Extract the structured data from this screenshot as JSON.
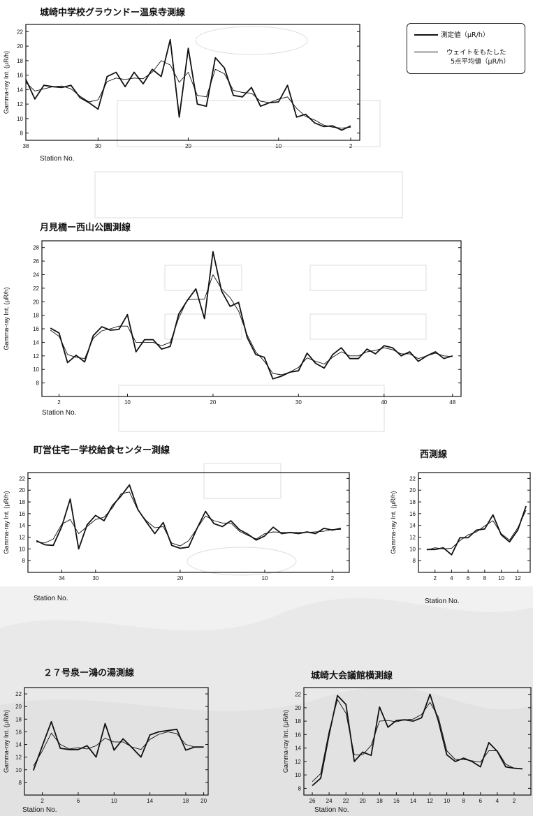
{
  "legend": {
    "measured": "測定値（μR/h）",
    "avg_line1": "ウェイトをもたした",
    "avg_line2": "5点平均値（μR/h）"
  },
  "chart_data": [
    {
      "type": "line",
      "title": "城崎中学校グラウンドー温泉寺測線",
      "ylabel": "Gamma-ray Int. (μR/h)",
      "xlabel": "Station No.",
      "x_reversed": true,
      "xlim": [
        38,
        1
      ],
      "ylim": [
        7,
        23
      ],
      "yticks": [
        8,
        10,
        12,
        14,
        16,
        18,
        20,
        22
      ],
      "xticks": [
        38,
        30,
        20,
        10,
        2
      ],
      "x": [
        38,
        37,
        36,
        35,
        34,
        33,
        32,
        31,
        30,
        29,
        28,
        27,
        26,
        25,
        24,
        23,
        22,
        21,
        20,
        19,
        18,
        17,
        16,
        15,
        14,
        13,
        12,
        11,
        10,
        9,
        8,
        7,
        6,
        5,
        4,
        3,
        2
      ],
      "series": [
        {
          "role": "measured",
          "values": [
            15.4,
            12.7,
            14.6,
            14.4,
            14.3,
            14.6,
            12.9,
            12.2,
            11.3,
            15.8,
            16.4,
            14.4,
            16.4,
            14.8,
            16.8,
            15.8,
            20.9,
            10.2,
            19.7,
            12.0,
            11.7,
            18.4,
            17.0,
            13.2,
            13.0,
            14.3,
            11.7,
            12.2,
            12.3,
            14.6,
            10.2,
            10.6,
            9.4,
            8.9,
            9.0,
            8.4,
            9.0
          ]
        },
        {
          "role": "average",
          "values": [
            15.0,
            13.8,
            14.1,
            14.4,
            14.5,
            14.1,
            13.1,
            12.3,
            12.6,
            15.1,
            15.6,
            15.4,
            15.6,
            15.5,
            16.4,
            18.0,
            17.4,
            15.0,
            16.4,
            13.2,
            13.0,
            16.8,
            16.2,
            13.9,
            13.6,
            13.5,
            12.4,
            12.2,
            12.7,
            13.0,
            11.4,
            10.3,
            9.8,
            9.1,
            8.8,
            8.7,
            8.8
          ]
        }
      ]
    },
    {
      "type": "line",
      "title": "月見橋ー西山公園測線",
      "ylabel": "Gamma-ray Int. (μR/h)",
      "xlabel": "Station No.",
      "x_reversed": false,
      "xlim": [
        0,
        49
      ],
      "ylim": [
        6,
        29
      ],
      "yticks": [
        8,
        10,
        12,
        14,
        16,
        18,
        20,
        22,
        24,
        26,
        28
      ],
      "xticks": [
        2,
        10,
        20,
        30,
        40,
        48
      ],
      "x": [
        1,
        2,
        3,
        4,
        5,
        6,
        7,
        8,
        9,
        10,
        11,
        12,
        13,
        14,
        15,
        16,
        17,
        18,
        19,
        20,
        21,
        22,
        23,
        24,
        25,
        26,
        27,
        28,
        29,
        30,
        31,
        32,
        33,
        34,
        35,
        36,
        37,
        38,
        39,
        40,
        41,
        42,
        43,
        44,
        45,
        46,
        47,
        48
      ],
      "series": [
        {
          "role": "measured",
          "values": [
            16.1,
            15.4,
            11.0,
            12.1,
            11.1,
            15.0,
            16.3,
            15.8,
            15.9,
            18.1,
            12.6,
            14.4,
            14.4,
            13.0,
            13.4,
            18.2,
            20.2,
            21.9,
            17.5,
            27.4,
            21.6,
            19.3,
            19.9,
            14.7,
            12.2,
            11.8,
            8.6,
            9.0,
            9.6,
            9.8,
            12.4,
            10.9,
            10.2,
            12.2,
            13.2,
            11.6,
            11.6,
            13.0,
            12.3,
            13.5,
            13.2,
            12.0,
            12.6,
            11.2,
            12.0,
            12.6,
            11.6,
            12.0
          ]
        },
        {
          "role": "average",
          "values": [
            15.8,
            14.9,
            12.2,
            11.8,
            11.6,
            14.6,
            15.7,
            16.0,
            16.4,
            16.4,
            14.0,
            14.0,
            14.0,
            13.5,
            14.0,
            17.6,
            20.3,
            20.4,
            20.4,
            24.0,
            21.9,
            20.6,
            18.6,
            15.1,
            12.6,
            11.2,
            9.4,
            9.2,
            9.6,
            10.3,
            11.7,
            11.2,
            10.8,
            11.8,
            12.6,
            12.0,
            12.0,
            12.6,
            12.8,
            13.2,
            12.9,
            12.3,
            12.3,
            11.6,
            12.0,
            12.4,
            12.0,
            11.9
          ]
        }
      ]
    },
    {
      "type": "line",
      "title": "町営住宅ー学校給食センター測線",
      "ylabel": "Gamma-ray Int. (μR/h)",
      "xlabel": "Station No.",
      "x_reversed": true,
      "xlim": [
        38,
        0
      ],
      "ylim": [
        6,
        23
      ],
      "yticks": [
        8,
        10,
        12,
        14,
        16,
        18,
        20,
        22
      ],
      "xticks": [
        34,
        30,
        20,
        10,
        2
      ],
      "x": [
        37,
        36,
        35,
        34,
        33,
        32,
        31,
        30,
        29,
        28,
        27,
        26,
        25,
        24,
        23,
        22,
        21,
        20,
        19,
        18,
        17,
        16,
        15,
        14,
        13,
        12,
        11,
        10,
        9,
        8,
        7,
        6,
        5,
        4,
        3,
        2,
        1
      ],
      "series": [
        {
          "role": "measured",
          "values": [
            11.4,
            10.7,
            10.6,
            13.8,
            18.5,
            10.0,
            14.1,
            15.7,
            14.8,
            17.4,
            19.0,
            20.9,
            16.7,
            14.6,
            12.6,
            14.5,
            10.6,
            10.1,
            10.3,
            13.5,
            16.4,
            14.3,
            13.8,
            14.8,
            13.3,
            12.5,
            11.5,
            12.2,
            13.7,
            12.6,
            12.8,
            12.6,
            12.9,
            12.6,
            13.5,
            13.2,
            13.5
          ]
        },
        {
          "role": "average",
          "values": [
            11.2,
            11.0,
            11.7,
            14.2,
            15.0,
            12.6,
            13.8,
            15.0,
            15.4,
            17.0,
            19.4,
            19.7,
            16.6,
            14.8,
            13.6,
            13.8,
            11.0,
            10.5,
            11.4,
            13.5,
            15.6,
            14.8,
            14.4,
            14.4,
            13.0,
            12.3,
            11.7,
            12.6,
            12.9,
            12.8,
            12.8,
            12.8,
            12.8,
            12.9,
            13.0,
            13.3,
            13.3
          ]
        }
      ]
    },
    {
      "type": "line",
      "title": "西測線",
      "ylabel": "Gamma-ray Int. (μR/h)",
      "xlabel": "Station No.",
      "x_reversed": false,
      "xlim": [
        0,
        13.5
      ],
      "ylim": [
        6,
        23
      ],
      "yticks": [
        8,
        10,
        12,
        14,
        16,
        18,
        20,
        22
      ],
      "xticks": [
        2,
        4,
        6,
        8,
        10,
        12
      ],
      "x": [
        1,
        2,
        3,
        4,
        5,
        6,
        7,
        8,
        9,
        10,
        11,
        12,
        13
      ],
      "series": [
        {
          "role": "measured",
          "values": [
            9.9,
            9.9,
            10.2,
            9.0,
            11.9,
            11.9,
            13.2,
            13.4,
            15.8,
            12.4,
            11.2,
            13.2,
            17.3
          ]
        },
        {
          "role": "average",
          "values": [
            9.8,
            10.2,
            10.0,
            10.1,
            11.4,
            12.4,
            12.9,
            13.9,
            14.8,
            12.6,
            11.5,
            13.6,
            16.6
          ]
        }
      ]
    },
    {
      "type": "line",
      "title": "２７号泉ー鴻の湯測線",
      "ylabel": "Gamma-ray Int. (μR/h)",
      "xlabel": "Station No.",
      "x_reversed": false,
      "xlim": [
        0,
        20.5
      ],
      "ylim": [
        6,
        23
      ],
      "yticks": [
        8,
        10,
        12,
        14,
        16,
        18,
        20,
        22
      ],
      "xticks": [
        2,
        6,
        10,
        14,
        18,
        20
      ],
      "x": [
        1,
        2,
        3,
        4,
        5,
        6,
        7,
        8,
        9,
        10,
        11,
        12,
        13,
        14,
        15,
        16,
        17,
        18,
        19,
        20
      ],
      "series": [
        {
          "role": "measured",
          "values": [
            9.9,
            13.8,
            17.6,
            13.4,
            13.2,
            13.2,
            13.8,
            12.0,
            17.3,
            13.1,
            14.9,
            13.5,
            12.0,
            15.5,
            16.0,
            16.2,
            16.4,
            13.1,
            13.6,
            13.6
          ]
        },
        {
          "role": "average",
          "values": [
            10.6,
            13.0,
            15.8,
            14.0,
            13.3,
            13.5,
            13.3,
            13.8,
            15.0,
            14.4,
            14.4,
            13.6,
            13.2,
            14.8,
            15.6,
            16.0,
            15.7,
            14.0,
            13.6,
            13.6
          ]
        }
      ]
    },
    {
      "type": "line",
      "title": "城崎大会議館横測線",
      "ylabel": "Gamma-ray Int. (μR/h)",
      "xlabel": "Station No.",
      "x_reversed": true,
      "xlim": [
        27,
        0
      ],
      "ylim": [
        7,
        23
      ],
      "yticks": [
        8,
        10,
        12,
        14,
        16,
        18,
        20,
        22
      ],
      "xticks": [
        26,
        24,
        22,
        20,
        18,
        16,
        14,
        12,
        10,
        8,
        6,
        4,
        2
      ],
      "x": [
        26,
        25,
        24,
        23,
        22,
        21,
        20,
        19,
        18,
        17,
        16,
        15,
        14,
        13,
        12,
        11,
        10,
        9,
        8,
        7,
        6,
        5,
        4,
        3,
        2,
        1
      ],
      "series": [
        {
          "role": "measured",
          "values": [
            8.4,
            9.5,
            16.0,
            21.8,
            20.5,
            12.0,
            13.4,
            12.9,
            20.1,
            17.1,
            18.1,
            18.2,
            18.0,
            18.5,
            22.0,
            18.0,
            13.0,
            12.0,
            12.5,
            12.0,
            11.2,
            14.8,
            13.5,
            11.2,
            11.0,
            10.9
          ]
        },
        {
          "role": "average",
          "values": [
            9.0,
            10.2,
            16.5,
            21.2,
            19.2,
            13.0,
            13.0,
            14.4,
            18.0,
            18.1,
            17.9,
            18.2,
            18.3,
            19.0,
            20.8,
            18.6,
            13.6,
            12.3,
            12.3,
            12.1,
            11.9,
            13.6,
            13.6,
            11.6,
            11.0,
            10.9
          ]
        }
      ]
    }
  ]
}
